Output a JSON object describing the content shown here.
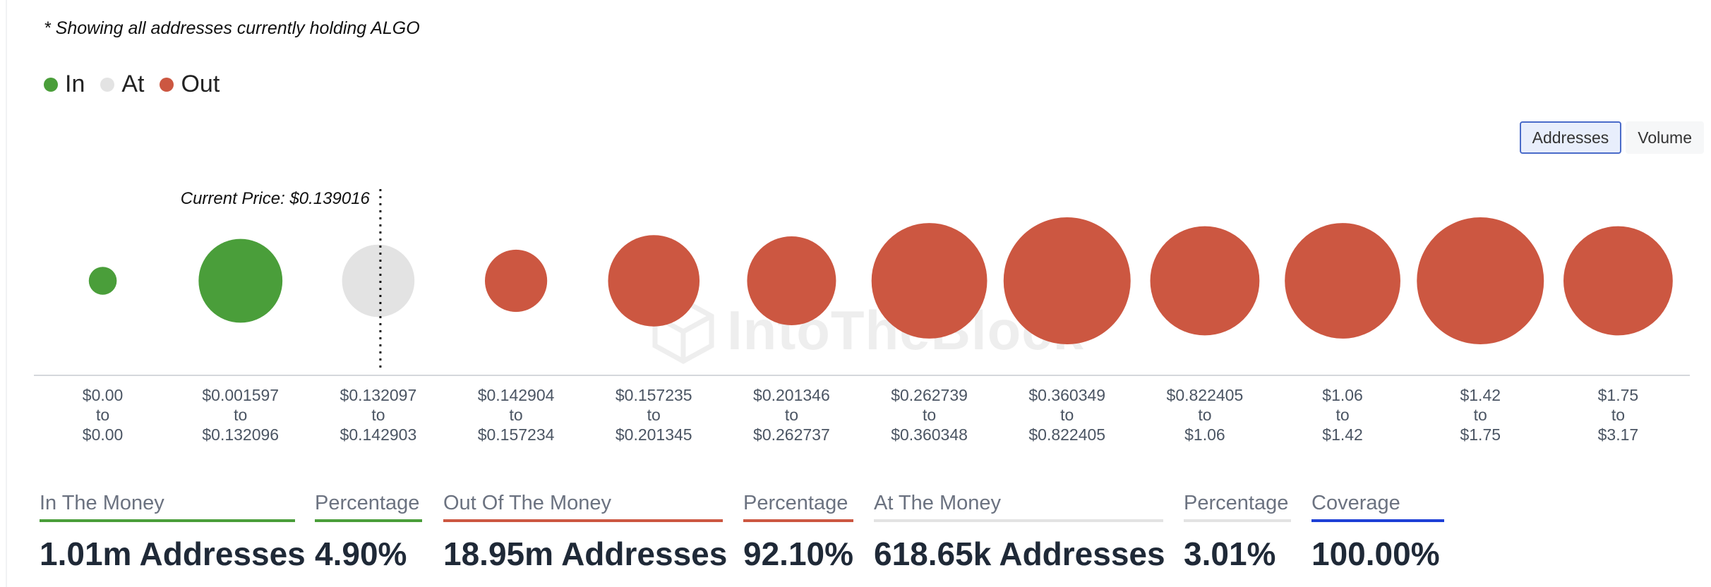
{
  "note": "* Showing all addresses currently holding ALGO",
  "legend": [
    {
      "label": "In",
      "color": "#4a9e3a"
    },
    {
      "label": "At",
      "color": "#e3e3e3"
    },
    {
      "label": "Out",
      "color": "#cc5741"
    }
  ],
  "toggle": {
    "addresses": "Addresses",
    "volume": "Volume",
    "active": "Addresses"
  },
  "watermark": "IntoTheBlock",
  "chart_data": {
    "type": "scatter",
    "title": "",
    "current_price_label": "Current Price: $0.139016",
    "current_price_bucket": 2,
    "categories": [
      {
        "from": "$0.00",
        "to_word": "to",
        "to": "$0.00",
        "status": "In",
        "relative_size": 0.22
      },
      {
        "from": "$0.001597",
        "to_word": "to",
        "to": "$0.132096",
        "status": "In",
        "relative_size": 0.66
      },
      {
        "from": "$0.132097",
        "to_word": "to",
        "to": "$0.142903",
        "status": "At",
        "relative_size": 0.57
      },
      {
        "from": "$0.142904",
        "to_word": "to",
        "to": "$0.157234",
        "status": "Out",
        "relative_size": 0.49
      },
      {
        "from": "$0.157235",
        "to_word": "to",
        "to": "$0.201345",
        "status": "Out",
        "relative_size": 0.72
      },
      {
        "from": "$0.201346",
        "to_word": "to",
        "to": "$0.262737",
        "status": "Out",
        "relative_size": 0.7
      },
      {
        "from": "$0.262739",
        "to_word": "to",
        "to": "$0.360348",
        "status": "Out",
        "relative_size": 0.91
      },
      {
        "from": "$0.360349",
        "to_word": "to",
        "to": "$0.822405",
        "status": "Out",
        "relative_size": 1.0
      },
      {
        "from": "$0.822405",
        "to_word": "to",
        "to": "$1.06",
        "status": "Out",
        "relative_size": 0.86
      },
      {
        "from": "$1.06",
        "to_word": "to",
        "to": "$1.42",
        "status": "Out",
        "relative_size": 0.91
      },
      {
        "from": "$1.42",
        "to_word": "to",
        "to": "$1.75",
        "status": "Out",
        "relative_size": 1.0
      },
      {
        "from": "$1.75",
        "to_word": "to",
        "to": "$3.17",
        "status": "Out",
        "relative_size": 0.86
      }
    ],
    "colors": {
      "In": "#4a9e3a",
      "At": "#e3e3e3",
      "Out": "#cc5741"
    }
  },
  "stats": [
    {
      "label": "In The Money",
      "value": "1.01m Addresses",
      "color": "#4a9e3a"
    },
    {
      "label": "Percentage",
      "value": "4.90%",
      "color": "#4a9e3a"
    },
    {
      "label": "Out Of The Money",
      "value": "18.95m Addresses",
      "color": "#cc5741"
    },
    {
      "label": "Percentage",
      "value": "92.10%",
      "color": "#cc5741"
    },
    {
      "label": "At The Money",
      "value": "618.65k Addresses",
      "color": "#e3e3e3"
    },
    {
      "label": "Percentage",
      "value": "3.01%",
      "color": "#e3e3e3"
    },
    {
      "label": "Coverage",
      "value": "100.00%",
      "color": "#1d3fd6"
    }
  ]
}
